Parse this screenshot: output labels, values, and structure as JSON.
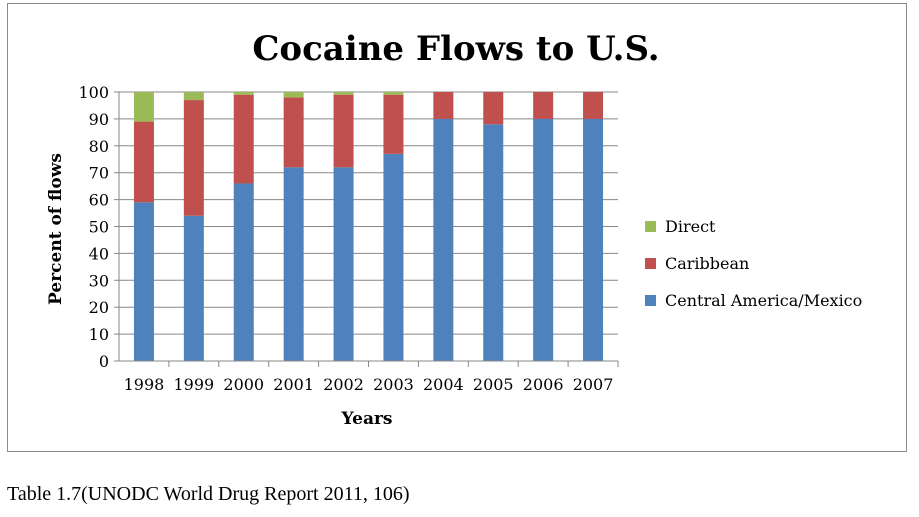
{
  "chart_data": {
    "type": "bar",
    "stacked": true,
    "title": "Cocaine Flows to U.S.",
    "xlabel": "Years",
    "ylabel": "Percent of flows",
    "ylim": [
      0,
      100
    ],
    "yticks": [
      0,
      10,
      20,
      30,
      40,
      50,
      60,
      70,
      80,
      90,
      100
    ],
    "grid": true,
    "legend_position": "right",
    "categories": [
      "1998",
      "1999",
      "2000",
      "2001",
      "2002",
      "2003",
      "2004",
      "2005",
      "2006",
      "2007"
    ],
    "series": [
      {
        "name": "Central America/Mexico",
        "color": "#4F81BD",
        "values": [
          59,
          54,
          66,
          72,
          72,
          77,
          90,
          88,
          90,
          90
        ]
      },
      {
        "name": "Caribbean",
        "color": "#C0504D",
        "values": [
          30,
          43,
          33,
          26,
          27,
          22,
          10,
          12,
          10,
          10
        ]
      },
      {
        "name": "Direct",
        "color": "#9BBB59",
        "values": [
          11,
          3,
          1,
          2,
          1,
          1,
          0,
          0,
          0,
          0
        ]
      }
    ]
  },
  "caption": "Table 1.7(UNODC World Drug Report 2011, 106)"
}
